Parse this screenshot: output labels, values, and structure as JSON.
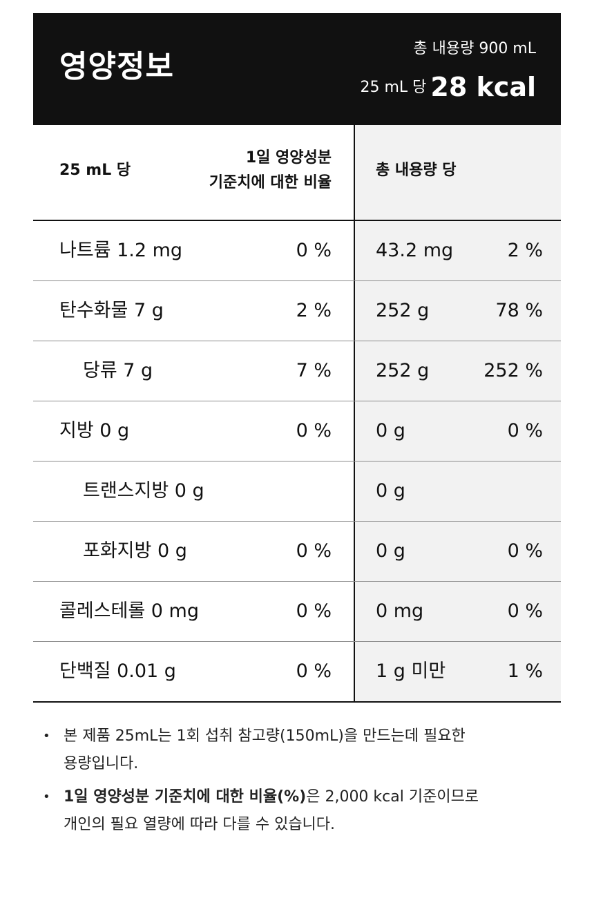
{
  "header": {
    "title": "영양정보",
    "total_volume": "총 내용량 900 mL",
    "per_unit": "25 mL 당",
    "kcal": "28 kcal"
  },
  "table": {
    "head": {
      "per_unit": "25 mL 당",
      "dv_line1": "1일 영양성분",
      "dv_line2": "기준치에 대한 비율",
      "total": "총 내용량 당"
    },
    "rows": [
      {
        "name": "나트륨 1.2 mg",
        "dv": "0 %",
        "total_amount": "43.2 mg",
        "total_pct": "2 %"
      },
      {
        "name": "탄수화물 7 g",
        "dv": "2 %",
        "total_amount": "252 g",
        "total_pct": "78 %"
      },
      {
        "name": "당류 7 g",
        "dv": "7 %",
        "total_amount": "252 g",
        "total_pct": "252 %"
      },
      {
        "name": "지방 0 g",
        "dv": "0 %",
        "total_amount": "0 g",
        "total_pct": "0 %"
      },
      {
        "name": "트랜스지방 0 g",
        "dv": "",
        "total_amount": "0 g",
        "total_pct": ""
      },
      {
        "name": "포화지방 0 g",
        "dv": "0 %",
        "total_amount": "0 g",
        "total_pct": "0 %"
      },
      {
        "name": "콜레스테롤 0 mg",
        "dv": "0 %",
        "total_amount": "0 mg",
        "total_pct": "0 %"
      },
      {
        "name": "단백질 0.01 g",
        "dv": "0 %",
        "total_amount": "1 g 미만",
        "total_pct": "1 %"
      }
    ]
  },
  "notes": {
    "bullet": "•",
    "note1_line1": "본 제품 25mL는 1회 섭취 참고량(150mL)을 만드는데 필요한",
    "note1_line2": "용량입니다.",
    "note2_bold": "1일 영양성분 기준치에 대한 비율(%)",
    "note2_rest": "은 2,000 kcal 기준이므로",
    "note2_line2": "개인의 필요 열량에 따라 다를 수 있습니다."
  },
  "colors": {
    "header_bg": "#111111",
    "right_column_bg": "#f2f2f2"
  }
}
